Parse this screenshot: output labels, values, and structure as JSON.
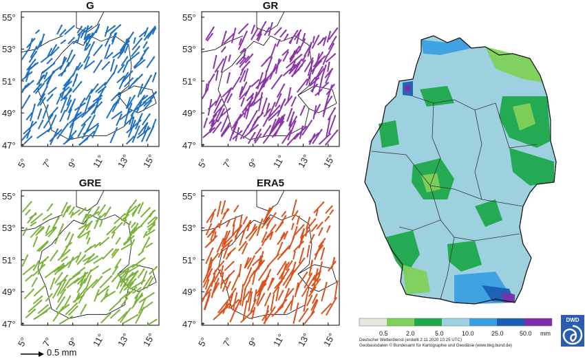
{
  "panels": [
    {
      "id": "G",
      "title": "G",
      "color": "#1f6fc0",
      "angle": -55,
      "lenScale": 1.0
    },
    {
      "id": "GR",
      "title": "GR",
      "color": "#8a35a8",
      "angle": -60,
      "lenScale": 1.05
    },
    {
      "id": "GRE",
      "title": "GRE",
      "color": "#7bb23a",
      "angle": -50,
      "lenScale": 1.0
    },
    {
      "id": "ERA5",
      "title": "ERA5",
      "color": "#d9531e",
      "angle": -62,
      "lenScale": 1.1
    }
  ],
  "lat_ticks": [
    "55°",
    "53°",
    "51°",
    "49°",
    "47°"
  ],
  "lon_ticks": [
    "5°",
    "7°",
    "9°",
    "11°",
    "13°",
    "15°"
  ],
  "scale_arrow": {
    "label": "0.5 mm"
  },
  "precip_map": {
    "legend_colors": [
      "#e8e6df",
      "#7fd15a",
      "#1fa84c",
      "#9dd1e0",
      "#3a9fe0",
      "#1a5fb4",
      "#7b2fa8"
    ],
    "legend_labels": [
      "0.5",
      "2.0",
      "5.0",
      "10.0",
      "25.0",
      "50.0",
      "mm"
    ],
    "credit_line1": "Deutscher Wetterdienst (erstellt 2.11.2020 10:25 UTC)",
    "credit_line2": "Geobasisdaten © Bundesamt für Kartographie und Geodäsie (www.bkg.bund.de)",
    "logo_text": "DWD"
  }
}
